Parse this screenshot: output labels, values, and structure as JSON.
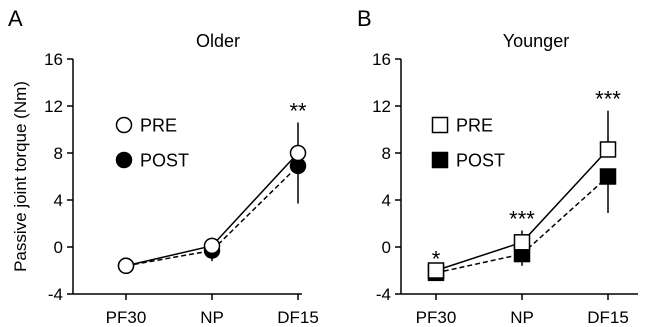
{
  "chart_data": [
    {
      "type": "line",
      "panel_label": "A",
      "title": "Older",
      "ylabel": "Passive joint torque (Nm)",
      "xlabel": "",
      "categories": [
        "PF30",
        "NP",
        "DF15"
      ],
      "ylim": [
        -4,
        16
      ],
      "yticks": [
        -4,
        0,
        4,
        8,
        12,
        16
      ],
      "marker_shape": "circle",
      "legend": {
        "position": "top-left",
        "entries": [
          "PRE",
          "POST"
        ]
      },
      "series": [
        {
          "name": "PRE",
          "line_style": "solid",
          "marker_fill": "#ffffff",
          "values": [
            -1.6,
            0.1,
            8.0
          ],
          "error_upper": [
            null,
            null,
            10.6
          ],
          "error_lower": [
            null,
            null,
            null
          ]
        },
        {
          "name": "POST",
          "line_style": "dashed",
          "marker_fill": "#000000",
          "values": [
            -1.6,
            -0.3,
            6.9
          ],
          "error_upper": [
            null,
            null,
            null
          ],
          "error_lower": [
            null,
            -1.2,
            3.7
          ]
        }
      ],
      "annotations": [
        {
          "category": "DF15",
          "text": "**"
        }
      ]
    },
    {
      "type": "line",
      "panel_label": "B",
      "title": "Younger",
      "ylabel": "",
      "xlabel": "",
      "categories": [
        "PF30",
        "NP",
        "DF15"
      ],
      "ylim": [
        -4,
        16
      ],
      "yticks": [
        -4,
        0,
        4,
        8,
        12,
        16
      ],
      "marker_shape": "square",
      "legend": {
        "position": "top-left",
        "entries": [
          "PRE",
          "POST"
        ]
      },
      "series": [
        {
          "name": "PRE",
          "line_style": "solid",
          "marker_fill": "#ffffff",
          "values": [
            -2.0,
            0.4,
            8.3
          ],
          "error_upper": [
            null,
            1.4,
            11.6
          ],
          "error_lower": [
            null,
            null,
            null
          ]
        },
        {
          "name": "POST",
          "line_style": "dashed",
          "marker_fill": "#000000",
          "values": [
            -2.2,
            -0.6,
            6.0
          ],
          "error_upper": [
            null,
            null,
            null
          ],
          "error_lower": [
            -2.8,
            -1.6,
            2.9
          ]
        }
      ],
      "annotations": [
        {
          "category": "PF30",
          "text": "*"
        },
        {
          "category": "NP",
          "text": "***"
        },
        {
          "category": "DF15",
          "text": "***"
        }
      ]
    }
  ]
}
